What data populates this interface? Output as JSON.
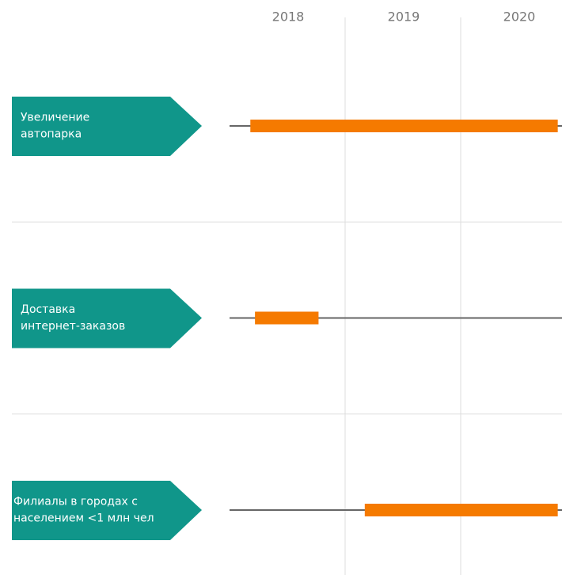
{
  "chart_data": {
    "type": "gantt",
    "columns": [
      "2018",
      "2019",
      "2020"
    ],
    "xlim": [
      2018,
      2021
    ],
    "xticks": [
      2019,
      2020
    ],
    "grid": true,
    "color": "#f57a00",
    "label_color": "#10968a",
    "tasks": [
      {
        "label_lines": [
          "Увеличение",
          "автопарка"
        ],
        "start": 2018.18,
        "end": 2020.84
      },
      {
        "label_lines": [
          "Доставка",
          "интернет-заказов"
        ],
        "start": 2018.22,
        "end": 2018.77
      },
      {
        "label_lines": [
          "Филиалы в городах с",
          "населением <1 млн чел"
        ],
        "start": 2019.17,
        "end": 2020.84
      }
    ]
  }
}
